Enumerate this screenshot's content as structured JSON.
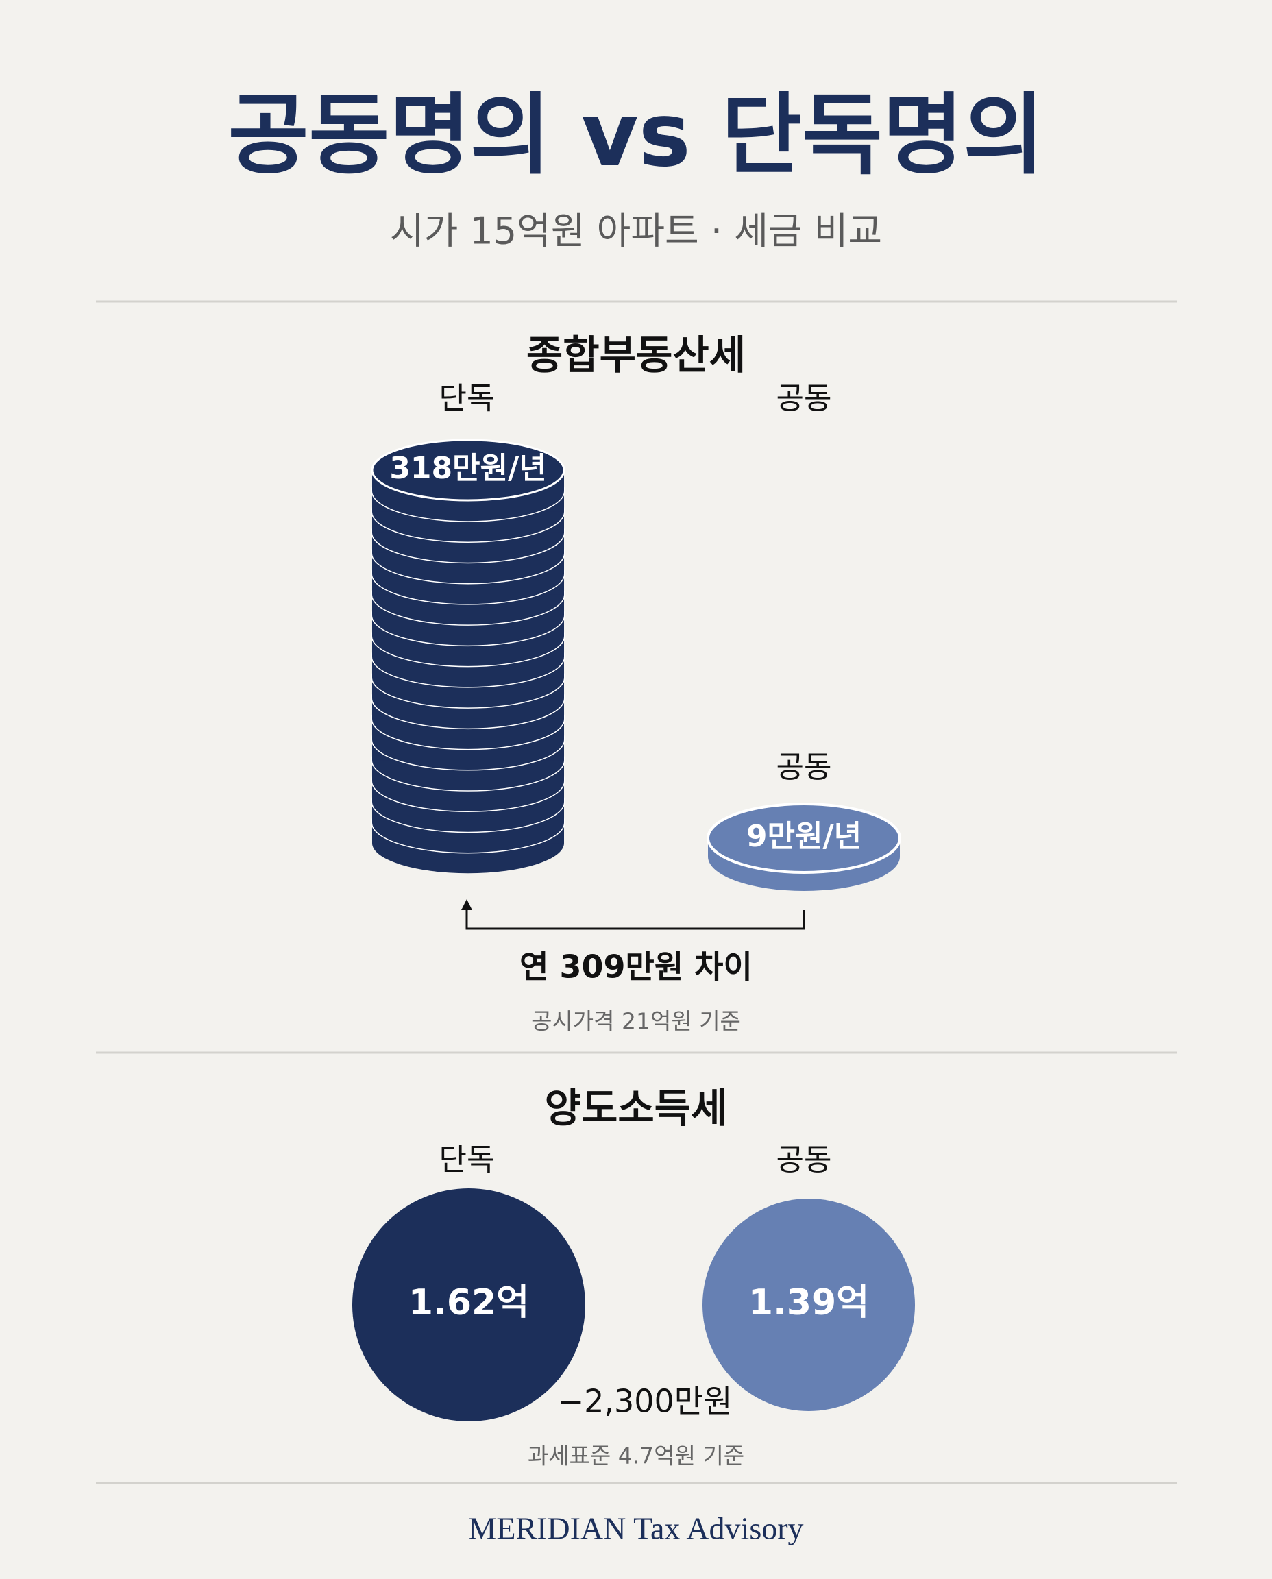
{
  "header": {
    "title": "공동명의 vs 단독명의",
    "subtitle": "시가 15억원 아파트 · 세금 비교"
  },
  "property_tax": {
    "title": "종합부동산세",
    "labels": [
      "단독",
      "공동"
    ],
    "coin_label": "공동",
    "sole_value": "318만원/년",
    "joint_value": "9만원/년",
    "difference": "연 309만원 차이",
    "note": "공시가격 21억원 기준"
  },
  "capital_gains_tax": {
    "title": "양도소득세",
    "labels": [
      "단독",
      "공동"
    ],
    "sole_value": "1.62억",
    "joint_value": "1.39억",
    "difference": "−2,300만원",
    "note": "과세표준 4.7억원 기준"
  },
  "footer": {
    "brand": "MERIDIAN Tax Advisory"
  }
}
